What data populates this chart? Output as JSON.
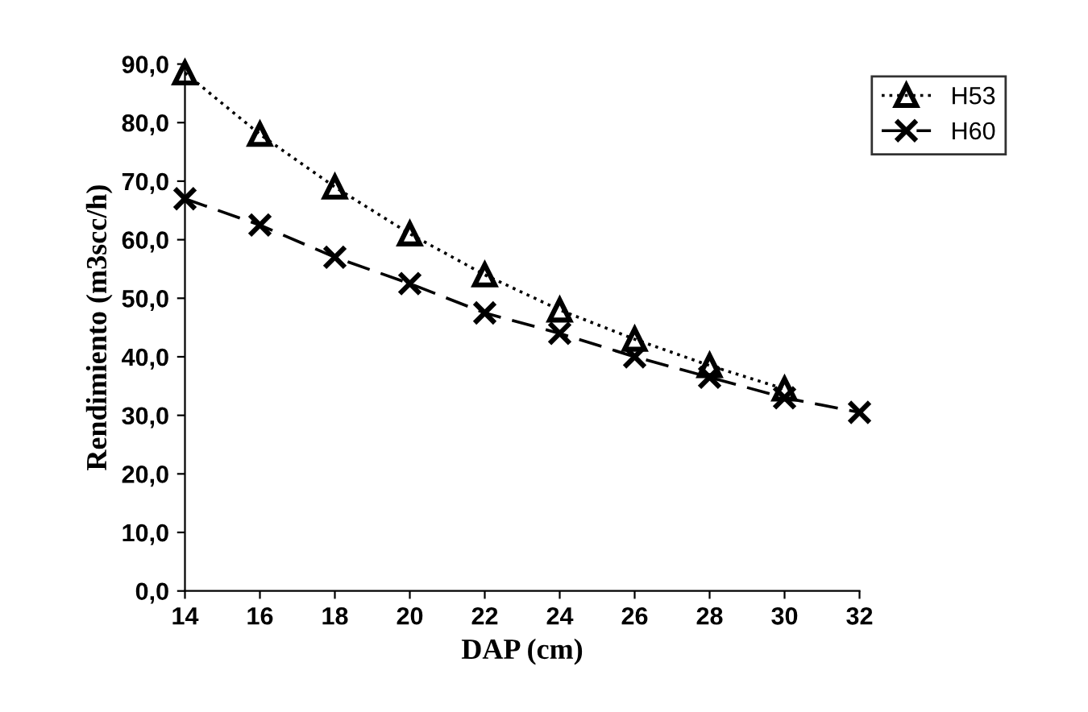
{
  "chart_data": {
    "type": "line",
    "xlabel": "DAP (cm)",
    "ylabel": "Rendimiento (m3scc/h)",
    "x": [
      14,
      16,
      18,
      20,
      22,
      24,
      26,
      28,
      30,
      32
    ],
    "xlim": [
      14,
      32
    ],
    "xticks": [
      14,
      16,
      18,
      20,
      22,
      24,
      26,
      28,
      30,
      32
    ],
    "ylim": [
      0,
      90
    ],
    "yticks": [
      {
        "value": 0,
        "label": "0,0"
      },
      {
        "value": 10,
        "label": "10,0"
      },
      {
        "value": 20,
        "label": "20,0"
      },
      {
        "value": 30,
        "label": "30,0"
      },
      {
        "value": 40,
        "label": "40,0"
      },
      {
        "value": 50,
        "label": "50,0"
      },
      {
        "value": 60,
        "label": "60,0"
      },
      {
        "value": 70,
        "label": "70,0"
      },
      {
        "value": 80,
        "label": "80,0"
      },
      {
        "value": 90,
        "label": "90,0"
      }
    ],
    "grid": false,
    "legend": "top right",
    "series": [
      {
        "name": "H53",
        "color": "#000000",
        "marker": "triangle",
        "line_style": "dotted",
        "values": [
          88.5,
          78,
          69,
          61,
          54,
          48,
          43,
          38.5,
          34.5,
          null
        ]
      },
      {
        "name": "H60",
        "color": "#000000",
        "marker": "cross",
        "line_style": "dashed",
        "values": [
          67,
          62.5,
          57,
          52.5,
          47.5,
          44,
          40,
          36.5,
          33,
          30.5
        ]
      }
    ]
  }
}
